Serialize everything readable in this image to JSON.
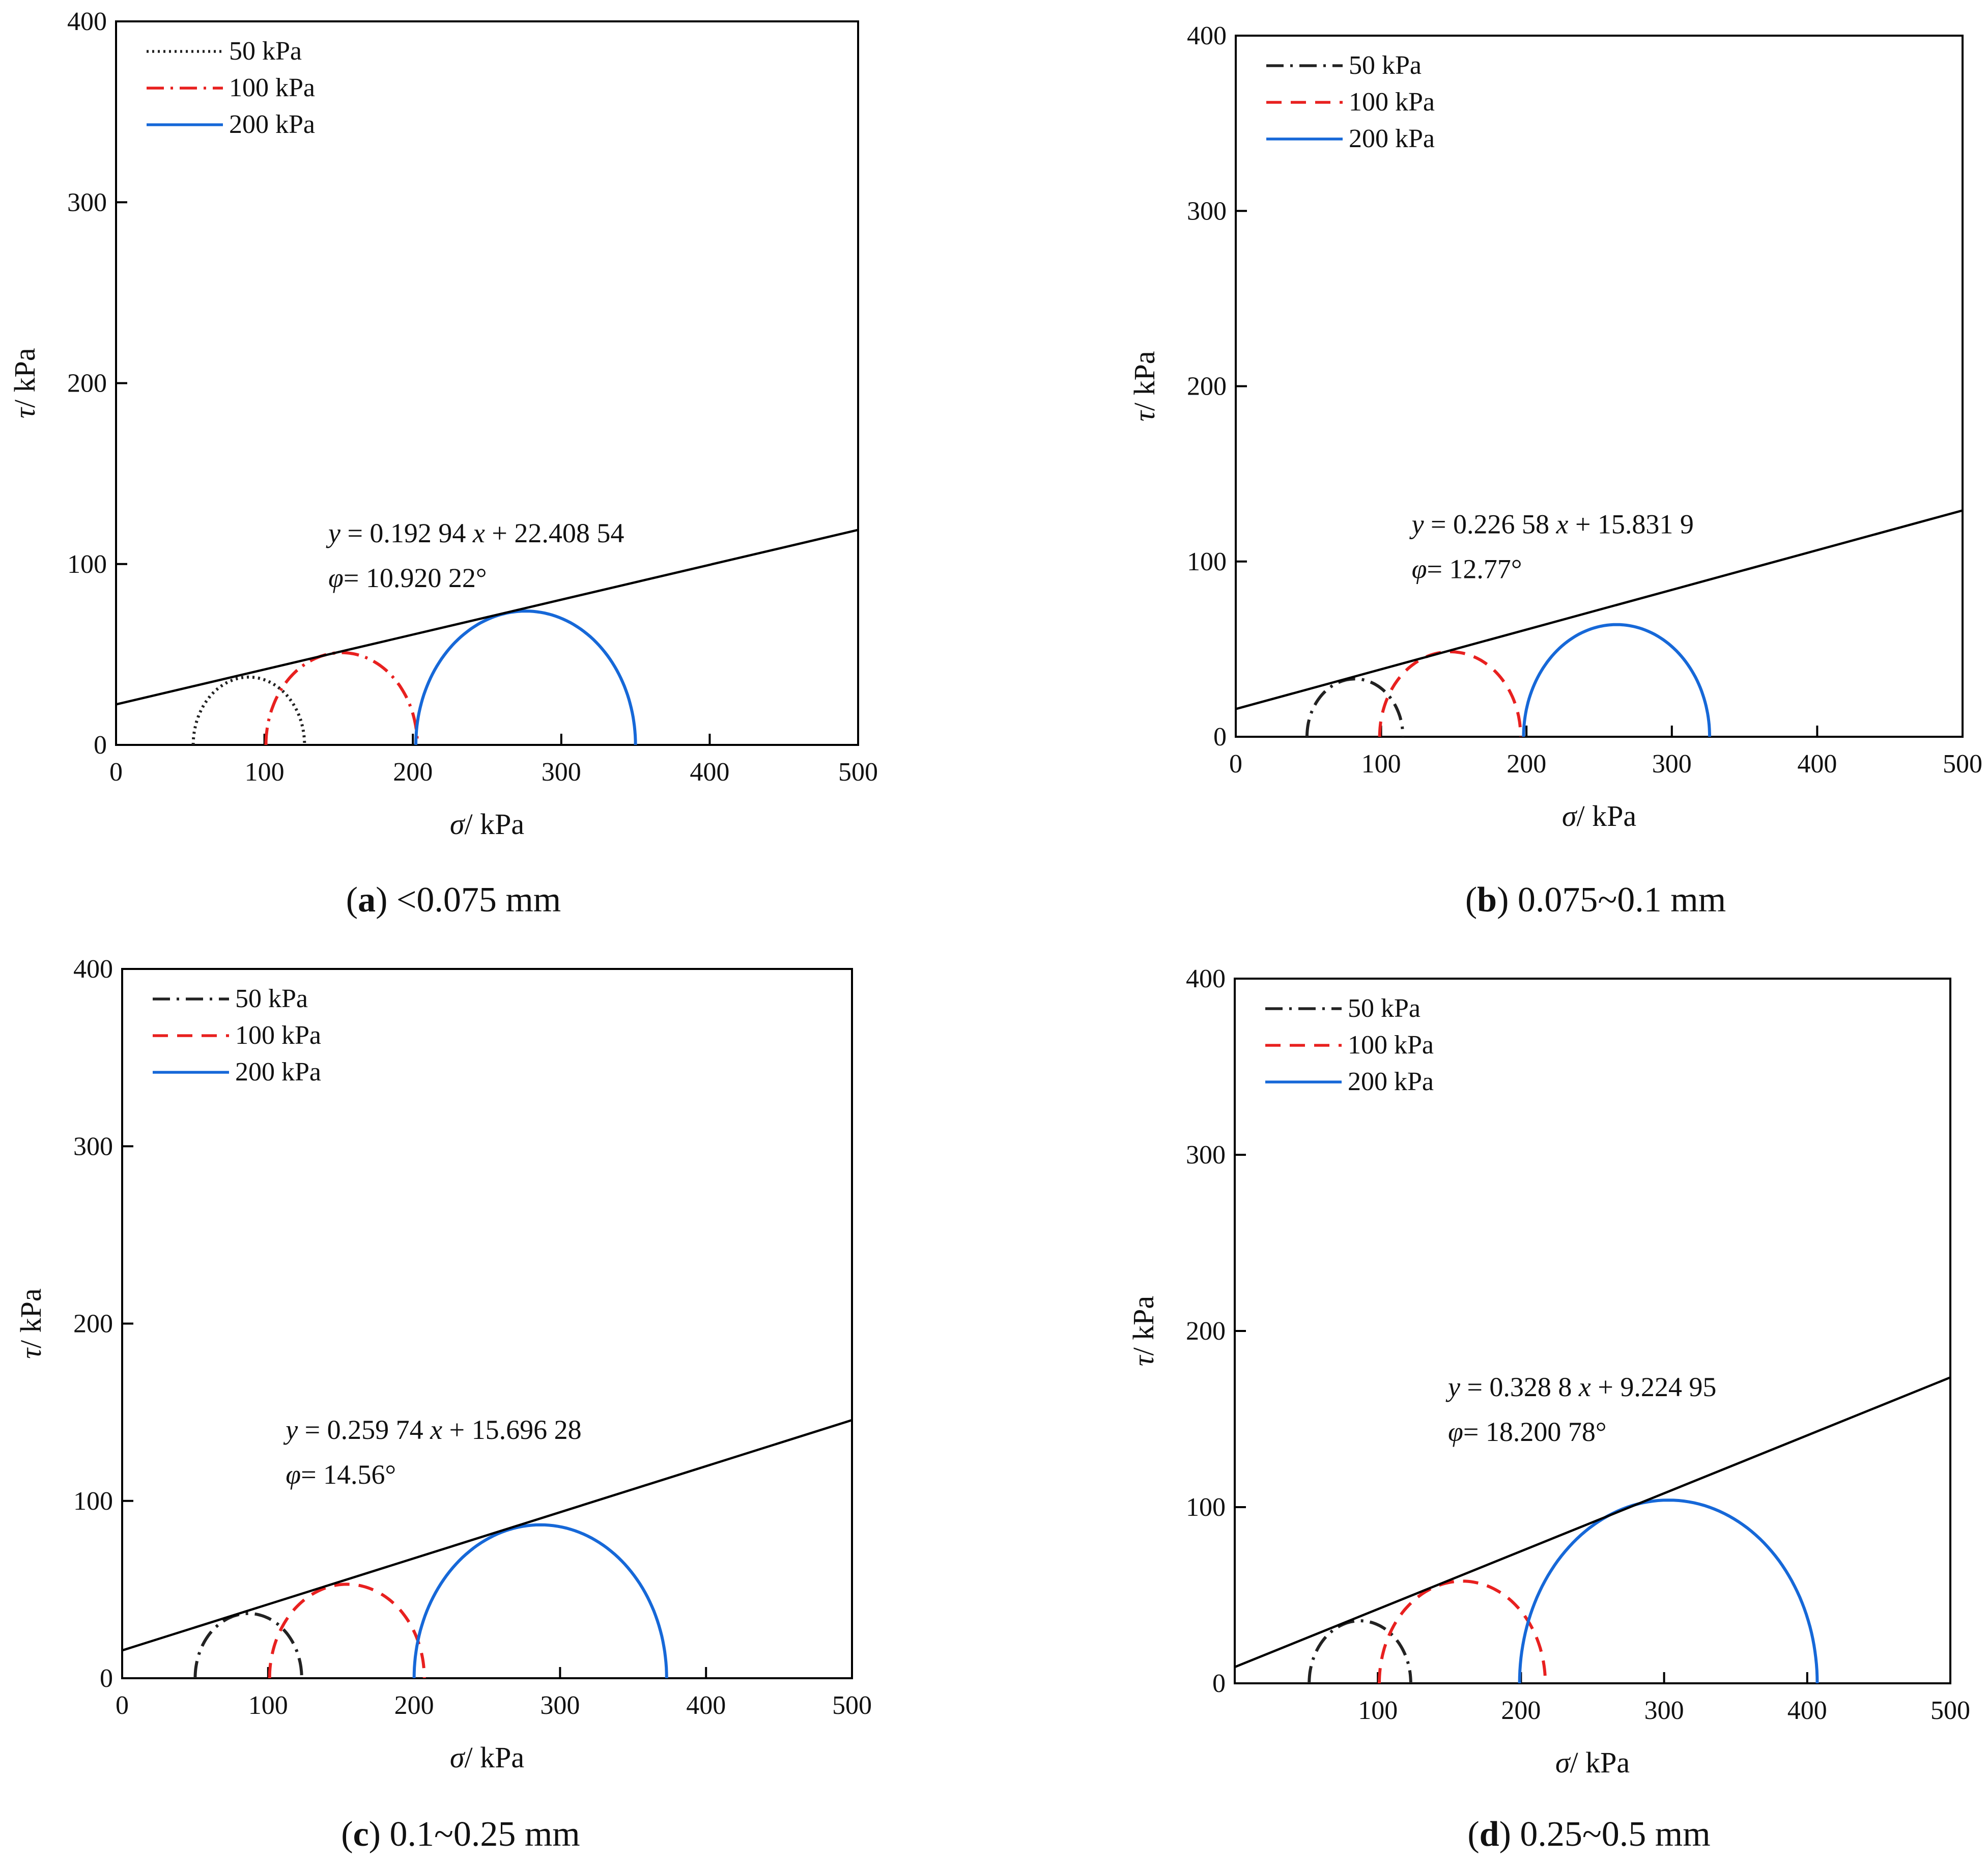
{
  "figure": {
    "legend_labels": [
      "50 kPa",
      "100 kPa",
      "200 kPa"
    ],
    "colors": {
      "s50": "#222222",
      "s100": "#e8201f",
      "s200": "#1668d8",
      "envelope": "#000000"
    }
  },
  "chart_data": [
    {
      "id": "a",
      "type": "line",
      "caption_letter": "a",
      "caption_text": " <0.075 mm",
      "xlabel_sym": "σ",
      "xlabel_unit": "/ kPa",
      "ylabel_sym": "τ",
      "ylabel_unit": "/ kPa",
      "xlim": [
        0,
        500
      ],
      "ylim": [
        0,
        400
      ],
      "xticks": [
        "0",
        "100",
        "200",
        "300",
        "400",
        "500"
      ],
      "yticks": [
        "0",
        "100",
        "200",
        "300",
        "400"
      ],
      "legend_position": "top-left",
      "legend_styles": [
        "dotted",
        "dashdot",
        "solid"
      ],
      "equation": {
        "y": "y",
        "rhs": " = 0.192 94 ",
        "x": "x",
        "tail": " + 22.408 54"
      },
      "phi": {
        "sym": "φ",
        "value": "= 10.920 22°"
      },
      "envelope": {
        "slope": 0.19294,
        "intercept": 22.40854
      },
      "circles": [
        {
          "name": "50 kPa",
          "sigma3": 52,
          "sigma1": 127,
          "style": "dotted"
        },
        {
          "name": "100 kPa",
          "sigma3": 101,
          "sigma1": 203,
          "style": "dashdot"
        },
        {
          "name": "200 kPa",
          "sigma3": 202,
          "sigma1": 350,
          "style": "solid"
        }
      ]
    },
    {
      "id": "b",
      "type": "line",
      "caption_letter": "b",
      "caption_text": " 0.075~0.1 mm",
      "xlabel_sym": "σ",
      "xlabel_unit": "/ kPa",
      "ylabel_sym": "τ",
      "ylabel_unit": "/ kPa",
      "xlim": [
        0,
        500
      ],
      "ylim": [
        0,
        400
      ],
      "xticks": [
        "0",
        "100",
        "200",
        "300",
        "400",
        "500"
      ],
      "yticks": [
        "0",
        "100",
        "200",
        "300",
        "400"
      ],
      "legend_position": "top-left",
      "legend_styles": [
        "dashdot",
        "dashed",
        "solid"
      ],
      "equation": {
        "y": "y",
        "rhs": " = 0.226 58 ",
        "x": "x",
        "tail": " + 15.831 9"
      },
      "phi": {
        "sym": "φ",
        "value": "= 12.77°"
      },
      "envelope": {
        "slope": 0.22658,
        "intercept": 15.8319
      },
      "circles": [
        {
          "name": "50 kPa",
          "sigma3": 49,
          "sigma1": 115,
          "style": "dashdot"
        },
        {
          "name": "100 kPa",
          "sigma3": 99,
          "sigma1": 196,
          "style": "dashed"
        },
        {
          "name": "200 kPa",
          "sigma3": 198,
          "sigma1": 326,
          "style": "solid"
        }
      ]
    },
    {
      "id": "c",
      "type": "line",
      "caption_letter": "c",
      "caption_text": " 0.1~0.25 mm",
      "xlabel_sym": "σ",
      "xlabel_unit": "/ kPa",
      "ylabel_sym": "τ",
      "ylabel_unit": "/ kPa",
      "xlim": [
        0,
        500
      ],
      "ylim": [
        0,
        400
      ],
      "xticks": [
        "0",
        "100",
        "200",
        "300",
        "400",
        "500"
      ],
      "yticks": [
        "0",
        "100",
        "200",
        "300",
        "400"
      ],
      "legend_position": "top-left",
      "legend_styles": [
        "dashdot",
        "dashed",
        "solid"
      ],
      "equation": {
        "y": "y",
        "rhs": " = 0.259 74 ",
        "x": "x",
        "tail": " + 15.696 28"
      },
      "phi": {
        "sym": "φ",
        "value": "= 14.56°"
      },
      "envelope": {
        "slope": 0.25974,
        "intercept": 15.69628
      },
      "circles": [
        {
          "name": "50 kPa",
          "sigma3": 50,
          "sigma1": 123,
          "style": "dashdot"
        },
        {
          "name": "100 kPa",
          "sigma3": 101,
          "sigma1": 207,
          "style": "dashed"
        },
        {
          "name": "200 kPa",
          "sigma3": 200,
          "sigma1": 373,
          "style": "solid"
        }
      ]
    },
    {
      "id": "d",
      "type": "line",
      "caption_letter": "d",
      "caption_text": " 0.25~0.5 mm",
      "xlabel_sym": "σ",
      "xlabel_unit": "/ kPa",
      "ylabel_sym": "τ",
      "ylabel_unit": "/ kPa",
      "xlim": [
        0,
        500
      ],
      "ylim": [
        0,
        400
      ],
      "xticks": [
        "100",
        "200",
        "300",
        "400",
        "500"
      ],
      "xtick_values": [
        100,
        200,
        300,
        400,
        500
      ],
      "yticks": [
        "0",
        "100",
        "200",
        "300",
        "400"
      ],
      "legend_position": "top-left",
      "legend_styles": [
        "dashdot",
        "dashed",
        "solid"
      ],
      "equation": {
        "y": "y",
        "rhs": " = 0.328 8 ",
        "x": "x",
        "tail": " + 9.224 95"
      },
      "phi": {
        "sym": "φ",
        "value": "= 18.200 78°"
      },
      "envelope": {
        "slope": 0.3288,
        "intercept": 9.22495
      },
      "circles": [
        {
          "name": "50 kPa",
          "sigma3": 52,
          "sigma1": 123,
          "style": "dashdot"
        },
        {
          "name": "100 kPa",
          "sigma3": 101,
          "sigma1": 217,
          "style": "dashed"
        },
        {
          "name": "200 kPa",
          "sigma3": 199,
          "sigma1": 407,
          "style": "solid"
        }
      ]
    }
  ]
}
